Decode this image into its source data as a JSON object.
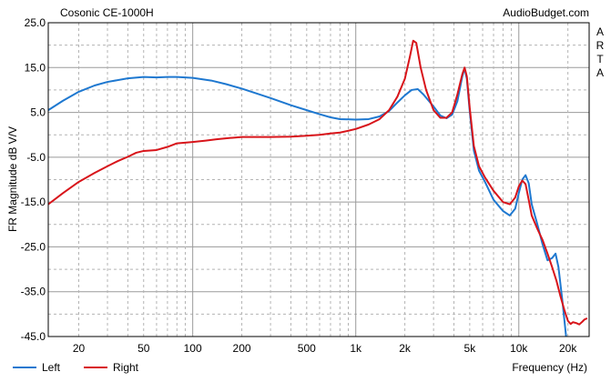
{
  "chart_data": {
    "type": "line",
    "title": "Cosonic CE-1000H",
    "watermark": "AudioBudget.com",
    "side_label": "ARTA",
    "xlabel": "Frequency (Hz)",
    "ylabel": "FR Magnitude dB V/V",
    "xscale": "log",
    "xlim": [
      13,
      27000
    ],
    "ylim": [
      -45,
      25
    ],
    "grid": true,
    "legend_position": "bottom-left",
    "ytick_values": [
      25,
      15,
      5,
      -5,
      -15,
      -25,
      -35,
      -45
    ],
    "ytick_labels": [
      "25.0",
      "15.0",
      "5.0",
      "-5.0",
      "-15.0",
      "-25.0",
      "-35.0",
      "-45.0"
    ],
    "xtick_values": [
      20,
      50,
      100,
      200,
      500,
      1000,
      2000,
      5000,
      10000,
      20000
    ],
    "xtick_labels": [
      "20",
      "50",
      "100",
      "200",
      "500",
      "1k",
      "2k",
      "5k",
      "10k",
      "20k"
    ],
    "series": [
      {
        "name": "Left",
        "color": "#1e78d0",
        "points": [
          [
            13,
            5.5
          ],
          [
            16,
            7.6
          ],
          [
            20,
            9.6
          ],
          [
            25,
            11.0
          ],
          [
            30,
            11.8
          ],
          [
            40,
            12.6
          ],
          [
            50,
            12.9
          ],
          [
            60,
            12.8
          ],
          [
            70,
            12.9
          ],
          [
            80,
            12.9
          ],
          [
            100,
            12.7
          ],
          [
            130,
            12.1
          ],
          [
            160,
            11.3
          ],
          [
            200,
            10.3
          ],
          [
            300,
            8.2
          ],
          [
            400,
            6.6
          ],
          [
            500,
            5.5
          ],
          [
            600,
            4.6
          ],
          [
            700,
            3.9
          ],
          [
            800,
            3.5
          ],
          [
            1000,
            3.4
          ],
          [
            1200,
            3.5
          ],
          [
            1400,
            4.1
          ],
          [
            1600,
            5.3
          ],
          [
            1800,
            7.2
          ],
          [
            2000,
            8.8
          ],
          [
            2200,
            10.0
          ],
          [
            2400,
            10.2
          ],
          [
            2600,
            9.0
          ],
          [
            3000,
            6.3
          ],
          [
            3300,
            4.3
          ],
          [
            3600,
            3.7
          ],
          [
            3900,
            4.5
          ],
          [
            4200,
            7.5
          ],
          [
            4500,
            13.0
          ],
          [
            4650,
            14.8
          ],
          [
            4800,
            12.5
          ],
          [
            5000,
            5.2
          ],
          [
            5300,
            -3.5
          ],
          [
            5700,
            -8.0
          ],
          [
            6200,
            -10.5
          ],
          [
            7000,
            -14.5
          ],
          [
            8000,
            -17.0
          ],
          [
            8800,
            -18.0
          ],
          [
            9500,
            -16.5
          ],
          [
            10000,
            -13.0
          ],
          [
            10500,
            -10.0
          ],
          [
            11000,
            -9.0
          ],
          [
            11500,
            -10.8
          ],
          [
            12000,
            -15.5
          ],
          [
            13000,
            -20.0
          ],
          [
            14000,
            -24.5
          ],
          [
            15000,
            -28.0
          ],
          [
            16000,
            -27.5
          ],
          [
            16800,
            -26.5
          ],
          [
            17500,
            -29.5
          ],
          [
            18500,
            -37.0
          ],
          [
            19500,
            -45.0
          ]
        ]
      },
      {
        "name": "Right",
        "color": "#d8141a",
        "points": [
          [
            13,
            -15.5
          ],
          [
            16,
            -13.0
          ],
          [
            20,
            -10.5
          ],
          [
            25,
            -8.5
          ],
          [
            30,
            -7.0
          ],
          [
            35,
            -5.8
          ],
          [
            40,
            -4.9
          ],
          [
            45,
            -4.0
          ],
          [
            50,
            -3.6
          ],
          [
            60,
            -3.4
          ],
          [
            70,
            -2.7
          ],
          [
            80,
            -1.9
          ],
          [
            100,
            -1.6
          ],
          [
            120,
            -1.3
          ],
          [
            140,
            -1.0
          ],
          [
            170,
            -0.7
          ],
          [
            200,
            -0.5
          ],
          [
            300,
            -0.5
          ],
          [
            400,
            -0.4
          ],
          [
            500,
            -0.2
          ],
          [
            600,
            0.0
          ],
          [
            700,
            0.3
          ],
          [
            800,
            0.5
          ],
          [
            900,
            0.9
          ],
          [
            1000,
            1.3
          ],
          [
            1200,
            2.3
          ],
          [
            1400,
            3.5
          ],
          [
            1600,
            5.5
          ],
          [
            1800,
            8.5
          ],
          [
            2000,
            12.5
          ],
          [
            2150,
            17.5
          ],
          [
            2250,
            21.0
          ],
          [
            2350,
            20.5
          ],
          [
            2500,
            15.0
          ],
          [
            2700,
            10.0
          ],
          [
            3000,
            5.5
          ],
          [
            3300,
            3.8
          ],
          [
            3600,
            3.8
          ],
          [
            3900,
            5.0
          ],
          [
            4200,
            9.0
          ],
          [
            4500,
            13.5
          ],
          [
            4650,
            15.0
          ],
          [
            4800,
            13.0
          ],
          [
            5000,
            6.0
          ],
          [
            5300,
            -2.5
          ],
          [
            5700,
            -7.0
          ],
          [
            6200,
            -9.5
          ],
          [
            7000,
            -12.5
          ],
          [
            8000,
            -15.0
          ],
          [
            8800,
            -15.5
          ],
          [
            9500,
            -14.0
          ],
          [
            10000,
            -11.5
          ],
          [
            10500,
            -10.2
          ],
          [
            11000,
            -11.0
          ],
          [
            11500,
            -14.5
          ],
          [
            12000,
            -18.0
          ],
          [
            13000,
            -21.0
          ],
          [
            14000,
            -23.5
          ],
          [
            15000,
            -26.5
          ],
          [
            16000,
            -29.5
          ],
          [
            17000,
            -32.5
          ],
          [
            18000,
            -36.0
          ],
          [
            19000,
            -39.0
          ],
          [
            20000,
            -41.5
          ],
          [
            20800,
            -42.2
          ],
          [
            21500,
            -41.8
          ],
          [
            22500,
            -42.0
          ],
          [
            23500,
            -42.3
          ],
          [
            24500,
            -41.7
          ],
          [
            25300,
            -41.2
          ],
          [
            26000,
            -41.0
          ]
        ]
      }
    ]
  }
}
